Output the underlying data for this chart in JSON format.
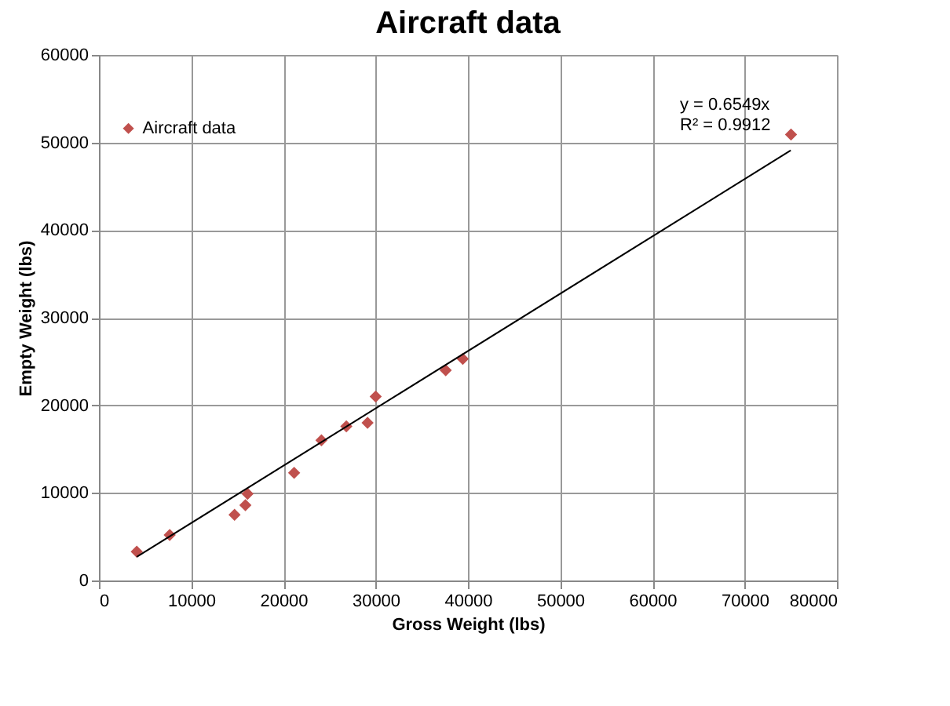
{
  "chart_data": {
    "type": "scatter",
    "title": "Aircraft data",
    "xlabel": "Gross Weight (lbs)",
    "ylabel": "Empty Weight  (lbs)",
    "xlim": [
      0,
      80000
    ],
    "ylim": [
      0,
      60000
    ],
    "xticks": [
      0,
      10000,
      20000,
      30000,
      40000,
      50000,
      60000,
      70000,
      80000
    ],
    "yticks": [
      0,
      10000,
      20000,
      30000,
      40000,
      50000,
      60000
    ],
    "grid": true,
    "legend": "top left",
    "marker": "diamond",
    "series": [
      {
        "name": "Aircraft data",
        "color": "#c0504d",
        "x": [
          4100,
          7670,
          14700,
          15880,
          16110,
          21160,
          24120,
          26820,
          29120,
          30000,
          37590,
          39440,
          75020
        ],
        "values": [
          3300,
          5200,
          7500,
          8600,
          9900,
          12300,
          16000,
          17600,
          18000,
          21000,
          24000,
          25300,
          50900
        ]
      },
      {
        "type": "line",
        "color": "#000000",
        "marker": "none",
        "x": [
          4100,
          75000
        ],
        "values": [
          2700,
          49100
        ]
      }
    ],
    "annotations": [
      "y = 0.6549x",
      "R² = 0.9912"
    ]
  }
}
